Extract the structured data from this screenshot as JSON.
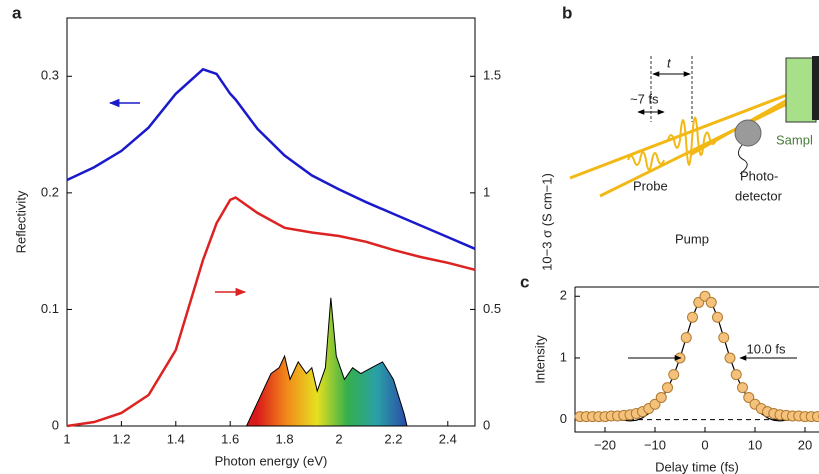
{
  "chart_data": [
    {
      "type": "line",
      "panel_label": "a",
      "x_label": "Photon energy (eV)",
      "y_label": "Reflectivity",
      "y2_label": "10−3 σ (S cm−1)",
      "xlim": [
        1,
        2.5
      ],
      "xticks": [
        1,
        1.2,
        1.4,
        1.6,
        1.8,
        2,
        2.2,
        2.4
      ],
      "ylim": [
        0,
        0.35
      ],
      "yticks": [
        0,
        0.1,
        0.2,
        0.3
      ],
      "y2lim": [
        0,
        1.75
      ],
      "y2ticks": [
        0,
        0.5,
        1,
        1.5
      ],
      "x": [
        1.0,
        1.1,
        1.2,
        1.3,
        1.4,
        1.5,
        1.55,
        1.6,
        1.62,
        1.7,
        1.8,
        1.9,
        2.0,
        2.1,
        2.2,
        2.3,
        2.4,
        2.5
      ],
      "series": [
        {
          "color": "#1a1acc",
          "values": [
            0.211,
            0.222,
            0.236,
            0.256,
            0.285,
            0.306,
            0.302,
            0.285,
            0.28,
            0.255,
            0.232,
            0.215,
            0.203,
            0.192,
            0.182,
            0.172,
            0.162,
            0.152
          ]
        },
        {
          "color": "#dd2222",
          "axis": "y2",
          "values": [
            0.0,
            0.017,
            0.056,
            0.133,
            0.326,
            0.712,
            0.87,
            0.97,
            0.98,
            0.914,
            0.85,
            0.83,
            0.815,
            0.79,
            0.755,
            0.725,
            0.7,
            0.67
          ]
        }
      ],
      "spectrum": {
        "x": [
          1.66,
          1.7,
          1.75,
          1.78,
          1.8,
          1.82,
          1.85,
          1.88,
          1.9,
          1.92,
          1.95,
          1.97,
          1.99,
          2.02,
          2.05,
          2.08,
          2.12,
          2.16,
          2.2,
          2.24,
          2.25
        ],
        "values": [
          0,
          0.02,
          0.045,
          0.05,
          0.06,
          0.04,
          0.055,
          0.045,
          0.05,
          0.03,
          0.05,
          0.11,
          0.06,
          0.04,
          0.05,
          0.045,
          0.05,
          0.055,
          0.04,
          0.01,
          0
        ]
      }
    },
    {
      "type": "scatter",
      "panel_label": "c",
      "x_label": "Delay time (fs)",
      "y_label": "Intensity",
      "annotation": "10.0 fs",
      "xlim": [
        -26,
        28
      ],
      "xticks": [
        {
          "value": -20,
          "label": "−20"
        },
        {
          "value": -10,
          "label": "−10"
        },
        0,
        10,
        20
      ],
      "ylim": [
        -0.2,
        2.15
      ],
      "yticks": [
        0,
        1,
        2
      ],
      "x": [
        -25,
        -23.75,
        -22.5,
        -21.25,
        -20,
        -18.75,
        -17.5,
        -16.25,
        -15,
        -13.75,
        -12.5,
        -11.25,
        -10,
        -8.75,
        -7.5,
        -6.25,
        -5,
        -3.75,
        -2.5,
        -1.25,
        0,
        1.25,
        2.5,
        3.75,
        5,
        6.25,
        7.5,
        8.75,
        10,
        11.25,
        12.5,
        13.75,
        15,
        16.25,
        17.5,
        18.75,
        20,
        21.25,
        22.5,
        23.75,
        25
      ],
      "series": [
        {
          "color": "#f4c27c",
          "values": [
            0.05,
            0.05,
            0.05,
            0.05,
            0.05,
            0.06,
            0.06,
            0.07,
            0.08,
            0.1,
            0.13,
            0.18,
            0.25,
            0.36,
            0.52,
            0.73,
            1.0,
            1.33,
            1.66,
            1.9,
            2,
            1.9,
            1.66,
            1.33,
            1.0,
            0.73,
            0.52,
            0.36,
            0.25,
            0.18,
            0.13,
            0.1,
            0.08,
            0.07,
            0.06,
            0.06,
            0.05,
            0.05,
            0.05,
            0.05,
            0.05
          ]
        }
      ],
      "fit": {
        "color": "#000000",
        "values": [
          0.02,
          0.02,
          0.02,
          0.02,
          0.01,
          0.01,
          0,
          -0.01,
          -0.02,
          -0.01,
          0.03,
          0.1,
          0.2,
          0.33,
          0.5,
          0.72,
          1,
          1.33,
          1.66,
          1.91,
          2,
          1.91,
          1.66,
          1.33,
          1,
          0.72,
          0.5,
          0.33,
          0.2,
          0.1,
          0.03,
          -0.01,
          -0.02,
          -0.01,
          0,
          0.01,
          0.01,
          0.02,
          0.02,
          0.02,
          0.02
        ]
      }
    }
  ],
  "diagram": {
    "panel_label": "b",
    "delay": "t",
    "pulse_width": "~7 fs",
    "probe": "Probe",
    "pump": "Pump",
    "detector": [
      "Photo-",
      "detector"
    ],
    "sample": "Sampl"
  }
}
